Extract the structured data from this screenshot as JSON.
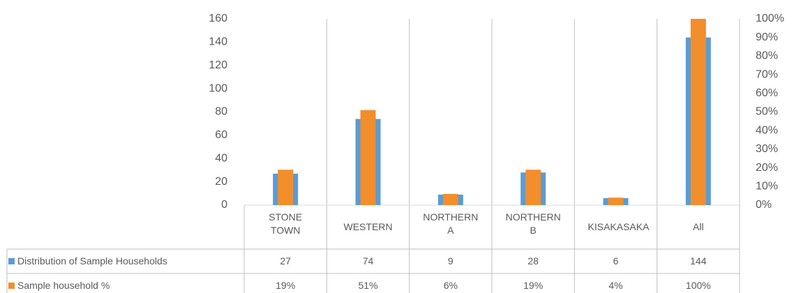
{
  "chart_data": {
    "type": "bar",
    "categories": [
      "STONE TOWN",
      "WESTERN",
      "NORTHERN A",
      "NORTHERN B",
      "KISAKASAKA",
      "All"
    ],
    "series": [
      {
        "name": "Distribution of Sample Households",
        "color": "#5b9bd5",
        "values": [
          27,
          74,
          9,
          28,
          6,
          144
        ]
      },
      {
        "name": "Sample household %",
        "color": "#f28e2b",
        "axis": "y2",
        "values": [
          19,
          51,
          6,
          19,
          4,
          100
        ],
        "value_labels": [
          "19%",
          "51%",
          "6%",
          "19%",
          "4%",
          "100%"
        ]
      }
    ],
    "ylim": [
      0,
      160
    ],
    "yticks": [
      0,
      20,
      40,
      60,
      80,
      100,
      120,
      140,
      160
    ],
    "y2lim": [
      0,
      100
    ],
    "y2ticks": [
      {
        "value": 0,
        "label": "0%"
      },
      {
        "value": 10,
        "label": "10%"
      },
      {
        "value": 20,
        "label": "20%"
      },
      {
        "value": 30,
        "label": "30%"
      },
      {
        "value": 40,
        "label": "40%"
      },
      {
        "value": 50,
        "label": "50%"
      },
      {
        "value": 60,
        "label": "60%"
      },
      {
        "value": 70,
        "label": "70%"
      },
      {
        "value": 80,
        "label": "80%"
      },
      {
        "value": 90,
        "label": "90%"
      },
      {
        "value": 100,
        "label": "100%"
      }
    ],
    "grid": true
  }
}
